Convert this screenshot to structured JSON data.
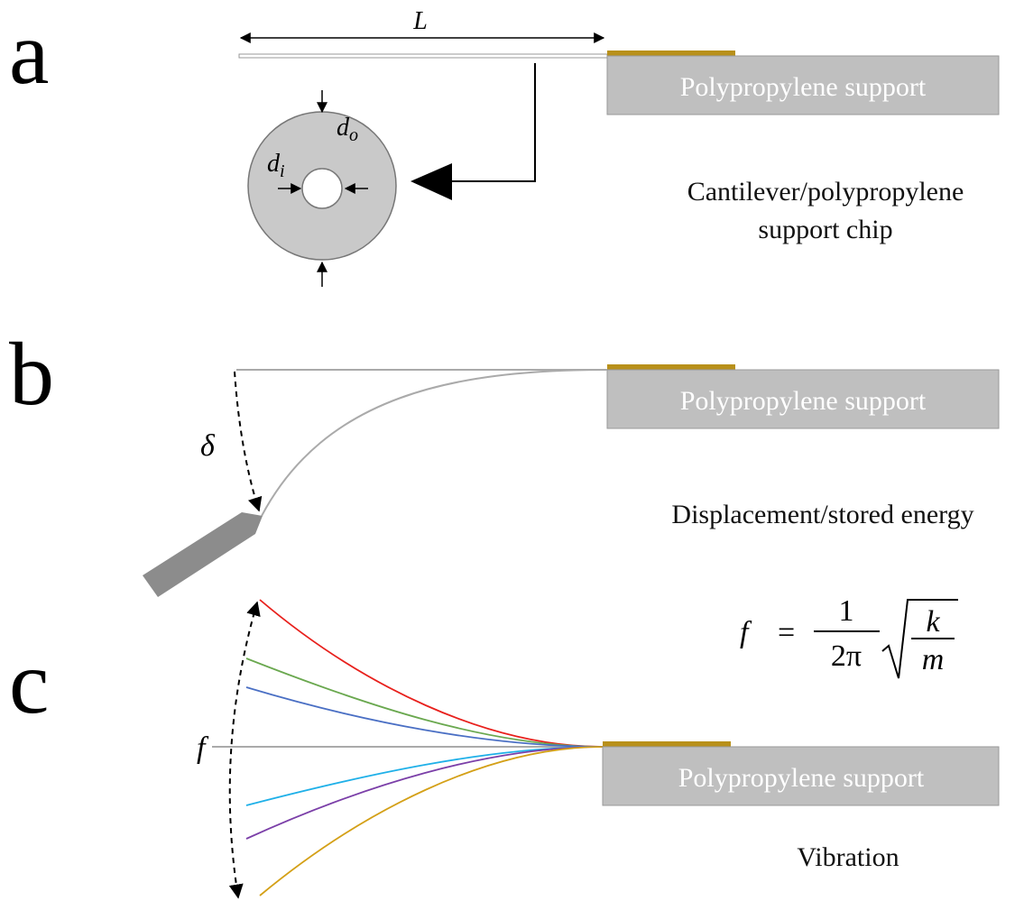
{
  "panels": [
    {
      "label": "a",
      "length_label": "L",
      "support": "Polypropylene support",
      "outer_diameter": {
        "symbol": "d",
        "sub": "o"
      },
      "inner_diameter": {
        "symbol": "d",
        "sub": "i"
      },
      "caption": [
        "Cantilever/polypropylene",
        "support chip"
      ]
    },
    {
      "label": "b",
      "deflection": "δ",
      "support": "Polypropylene support",
      "caption": "Displacement/stored energy"
    },
    {
      "label": "c",
      "frequency": "f",
      "support": "Polypropylene support",
      "caption": "Vibration",
      "formula": {
        "lhs": "f",
        "eq": "=",
        "num": "1",
        "den": "2π",
        "root_num": "k",
        "root_den": "m"
      }
    }
  ]
}
